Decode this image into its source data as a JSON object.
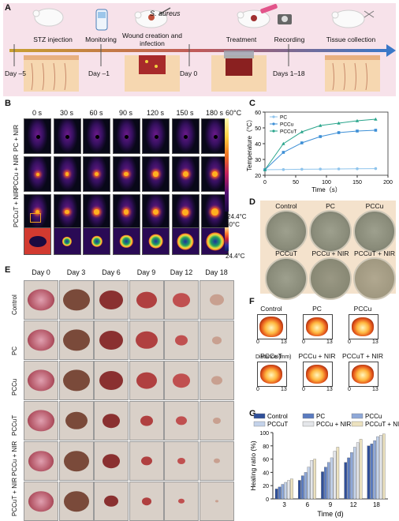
{
  "panel_labels": {
    "a": "A",
    "b": "B",
    "c": "C",
    "d": "D",
    "e": "E",
    "f": "F",
    "g": "G"
  },
  "panelA": {
    "bacterium": "S. aureus",
    "steps": [
      "STZ injection",
      "Monitoring",
      "Wound creation and infection",
      "Treatment",
      "Recording",
      "Tissue collection"
    ],
    "days": [
      "Day –5",
      "Day –1",
      "Day 0",
      "Days 1–18"
    ],
    "colors": {
      "bg": "#f7e2ea",
      "arrow": "#3a78c8"
    }
  },
  "panelB": {
    "times": [
      "0 s",
      "30 s",
      "60 s",
      "90 s",
      "120 s",
      "150 s",
      "180 s"
    ],
    "rows": [
      "PC + NIR",
      "PCCu + NIR",
      "PCCuT + NIR"
    ],
    "scale_top": "60°C",
    "scale_bottom": "24.4°C",
    "zoom_scale_top": "60°C",
    "zoom_scale_bottom": "24.4°C"
  },
  "panelD": {
    "labels": [
      "Control",
      "PC",
      "PCCu",
      "PCCuT",
      "PCCu + NIR",
      "PCCuT + NIR"
    ],
    "colors": {
      "bg": "#f4e2cc"
    }
  },
  "panelE": {
    "days": [
      "Day 0",
      "Day 3",
      "Day 6",
      "Day 9",
      "Day 12",
      "Day 18"
    ],
    "groups": [
      "Control",
      "PC",
      "PCCu",
      "PCCuT",
      "PCCu + NIR",
      "PCCuT + NIR"
    ]
  },
  "panelF": {
    "labels": [
      "Control",
      "PC",
      "PCCu",
      "PCCuT",
      "PCCu + NIR",
      "PCCuT + NIR"
    ],
    "tick0": "0",
    "tick13": "13",
    "xlabel": "Distance (mm)"
  },
  "chart_data": [
    {
      "id": "panelC",
      "type": "line",
      "x": [
        0,
        30,
        60,
        90,
        120,
        150,
        180
      ],
      "series": [
        {
          "name": "PC",
          "values": [
            23.5,
            23.6,
            23.8,
            23.9,
            24.0,
            24.1,
            24.2
          ],
          "color": "#8fc4ec",
          "marker": "circle"
        },
        {
          "name": "PCCu",
          "values": [
            23.5,
            34.5,
            40.5,
            44.5,
            47.0,
            48.0,
            48.5
          ],
          "color": "#3d8fd6",
          "marker": "square"
        },
        {
          "name": "PCCuT",
          "values": [
            23.5,
            40.0,
            47.5,
            51.5,
            53.0,
            54.5,
            55.5
          ],
          "color": "#2aa58c",
          "marker": "triangle"
        }
      ],
      "xlabel": "Time（s）",
      "ylabel": "Temperature（°C）",
      "xlim": [
        0,
        200
      ],
      "ylim": [
        20,
        60
      ],
      "xticks": [
        0,
        50,
        100,
        150,
        200
      ],
      "yticks": [
        20,
        30,
        40,
        50,
        60
      ],
      "legend": "top-left"
    },
    {
      "id": "panelG",
      "type": "bar",
      "categories": [
        "3",
        "6",
        "9",
        "12",
        "18"
      ],
      "series": [
        {
          "name": "Control",
          "values": [
            15,
            28,
            41,
            55,
            80
          ],
          "color": "#2f4f9a"
        },
        {
          "name": "PC",
          "values": [
            18,
            35,
            48,
            62,
            83
          ],
          "color": "#5a7bc0"
        },
        {
          "name": "PCCu",
          "values": [
            22,
            40,
            55,
            70,
            88
          ],
          "color": "#8fa8d8"
        },
        {
          "name": "PCCuT",
          "values": [
            25,
            48,
            62,
            78,
            94
          ],
          "color": "#c3d2ea"
        },
        {
          "name": "PCCu + NIR",
          "values": [
            28,
            58,
            72,
            85,
            96
          ],
          "color": "#e4e6ea"
        },
        {
          "name": "PCCuT + NIR",
          "values": [
            30,
            60,
            78,
            90,
            98
          ],
          "color": "#ece2bf"
        }
      ],
      "xlabel": "Time (d)",
      "ylabel": "Healing ratio (%)",
      "ylim": [
        0,
        100
      ],
      "yticks": [
        0,
        20,
        40,
        60,
        80,
        100
      ],
      "legend": "top"
    }
  ]
}
